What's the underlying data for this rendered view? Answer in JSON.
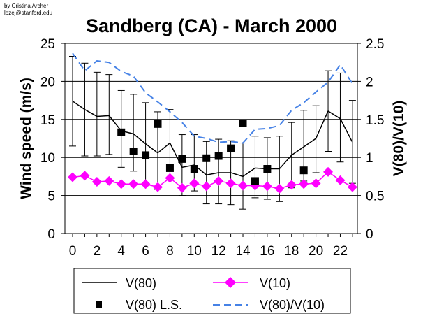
{
  "credit": {
    "line1": "by Cristina Archer",
    "line2": "lozej@stanford.edu"
  },
  "chart_data": {
    "type": "line",
    "title": "Sandberg (CA) - March 2000",
    "xlabel": "",
    "ylabel": "Wind speed (m/s)",
    "y2label": "V(80)/V(10)",
    "xlim": [
      0,
      23
    ],
    "ylim": [
      0,
      25
    ],
    "y2lim": [
      0,
      2.5
    ],
    "x": [
      0,
      1,
      2,
      3,
      4,
      5,
      6,
      7,
      8,
      9,
      10,
      11,
      12,
      13,
      14,
      15,
      16,
      17,
      18,
      19,
      20,
      21,
      22,
      23
    ],
    "x_tick_labels": [
      "0",
      "2",
      "4",
      "6",
      "8",
      "10",
      "12",
      "14",
      "16",
      "18",
      "20",
      "22"
    ],
    "x_tick_values": [
      0,
      2,
      4,
      6,
      8,
      10,
      12,
      14,
      16,
      18,
      20,
      22
    ],
    "y_tick_labels": [
      "0",
      "5",
      "10",
      "15",
      "20",
      "25"
    ],
    "y_tick_values": [
      0,
      5,
      10,
      15,
      20,
      25
    ],
    "y2_tick_labels": [
      "0",
      "0.5",
      "1",
      "1.5",
      "2",
      "2.5"
    ],
    "y2_tick_values": [
      0,
      0.5,
      1,
      1.5,
      2,
      2.5
    ],
    "gridlines": "horizontal",
    "series": [
      {
        "name": "V(80)",
        "axis": "left",
        "style": "solid",
        "color": "#000000",
        "values": [
          17.4,
          16.3,
          15.4,
          15.5,
          13.5,
          13.1,
          11.8,
          10.6,
          11.9,
          8.7,
          9.0,
          7.7,
          8.0,
          8.0,
          7.5,
          8.6,
          8.5,
          8.5,
          10.3,
          11.4,
          12.5,
          16.1,
          15.1,
          12.0
        ],
        "error_upper": [
          23.3,
          22.4,
          21.2,
          20.9,
          18.8,
          18.3,
          17.2,
          16.0,
          16.3,
          13.0,
          13.0,
          12.1,
          12.4,
          12.2,
          11.9,
          12.8,
          12.6,
          12.8,
          14.6,
          16.2,
          16.8,
          21.4,
          21.1,
          17.5
        ],
        "error_lower": [
          11.5,
          10.2,
          10.2,
          10.4,
          8.7,
          8.2,
          6.3,
          5.8,
          7.4,
          5.0,
          5.6,
          3.9,
          3.9,
          3.8,
          3.2,
          4.7,
          4.5,
          4.2,
          6.0,
          6.9,
          8.0,
          10.8,
          9.4,
          6.6
        ]
      },
      {
        "name": "V(10)",
        "axis": "left",
        "style": "diamond-line",
        "color": "#ff00ff",
        "values": [
          7.4,
          7.6,
          6.8,
          6.9,
          6.5,
          6.5,
          6.5,
          6.1,
          7.3,
          6.0,
          6.6,
          6.2,
          6.9,
          6.6,
          6.3,
          6.3,
          6.2,
          5.9,
          6.4,
          6.5,
          6.6,
          8.1,
          7.0,
          6.1
        ]
      },
      {
        "name": "V(80) L.S.",
        "axis": "left",
        "style": "square-markers",
        "color": "#000000",
        "x": [
          4,
          5,
          6,
          7,
          8,
          9,
          10,
          11,
          12,
          13,
          14,
          15,
          16,
          19
        ],
        "values": [
          13.3,
          10.8,
          10.3,
          14.4,
          8.6,
          9.8,
          8.5,
          9.9,
          10.2,
          11.2,
          14.5,
          6.9,
          8.5,
          8.3
        ]
      },
      {
        "name": "V(80)/V(10)",
        "axis": "right",
        "style": "dashed",
        "color": "#4682e6",
        "values": [
          2.37,
          2.14,
          2.27,
          2.25,
          2.13,
          2.07,
          1.85,
          1.73,
          1.6,
          1.46,
          1.28,
          1.25,
          1.2,
          1.21,
          1.19,
          1.37,
          1.38,
          1.42,
          1.62,
          1.72,
          1.86,
          1.99,
          2.22,
          1.97
        ]
      }
    ],
    "legend": {
      "placement": "bottom",
      "entries": [
        "V(80)",
        "V(10)",
        "V(80) L.S.",
        "V(80)/V(10)"
      ]
    }
  }
}
